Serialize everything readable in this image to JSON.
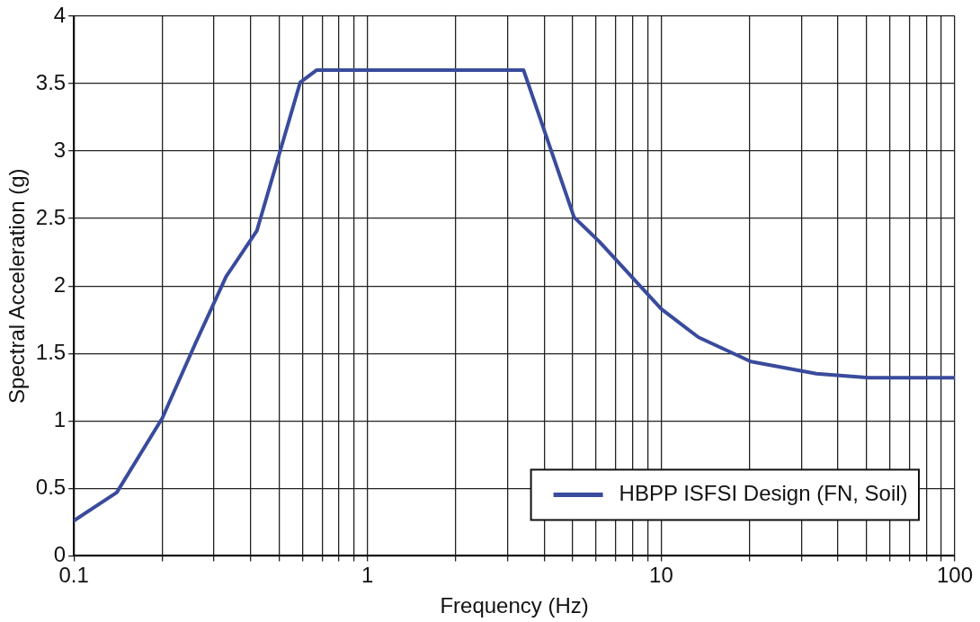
{
  "chart_data": {
    "type": "line",
    "xlabel": "Frequency (Hz)",
    "ylabel": "Spectral Acceleration (g)",
    "log": "x",
    "grid": true,
    "legend": "bottom right",
    "marker": "none",
    "line_style": "solid",
    "xlim": [
      0.1,
      100
    ],
    "ylim": [
      0,
      4
    ],
    "xticks": [
      0.1,
      {
        "value": 0.2,
        "label": null
      },
      {
        "value": 0.3,
        "label": null
      },
      {
        "value": 0.4,
        "label": null
      },
      {
        "value": 0.5,
        "label": null
      },
      {
        "value": 0.6,
        "label": null
      },
      {
        "value": 0.7,
        "label": null
      },
      {
        "value": 0.8,
        "label": null
      },
      {
        "value": 0.9,
        "label": null
      },
      1,
      {
        "value": 2,
        "label": null
      },
      {
        "value": 3,
        "label": null
      },
      {
        "value": 4,
        "label": null
      },
      {
        "value": 5,
        "label": null
      },
      {
        "value": 6,
        "label": null
      },
      {
        "value": 7,
        "label": null
      },
      {
        "value": 8,
        "label": null
      },
      {
        "value": 9,
        "label": null
      },
      10,
      {
        "value": 20,
        "label": null
      },
      {
        "value": 30,
        "label": null
      },
      {
        "value": 40,
        "label": null
      },
      {
        "value": 50,
        "label": null
      },
      {
        "value": 60,
        "label": null
      },
      {
        "value": 70,
        "label": null
      },
      {
        "value": 80,
        "label": null
      },
      {
        "value": 90,
        "label": null
      },
      100
    ],
    "yticks": [
      0,
      0.5,
      1,
      1.5,
      2,
      2.5,
      3,
      3.5,
      4
    ],
    "series": [
      {
        "name": "HBPP ISFSI Design (FN, Soil)",
        "color": "#3a4b9c",
        "x": [
          0.1,
          0.14,
          0.2,
          0.26,
          0.33,
          0.42,
          0.59,
          0.67,
          3.4,
          5.05,
          6.15,
          10,
          13.4,
          20.2,
          33.8,
          51,
          100
        ],
        "values": [
          0.26,
          0.47,
          1.02,
          1.58,
          2.07,
          2.41,
          3.51,
          3.6,
          3.6,
          2.51,
          2.33,
          1.83,
          1.62,
          1.44,
          1.35,
          1.32,
          1.32
        ]
      }
    ]
  }
}
